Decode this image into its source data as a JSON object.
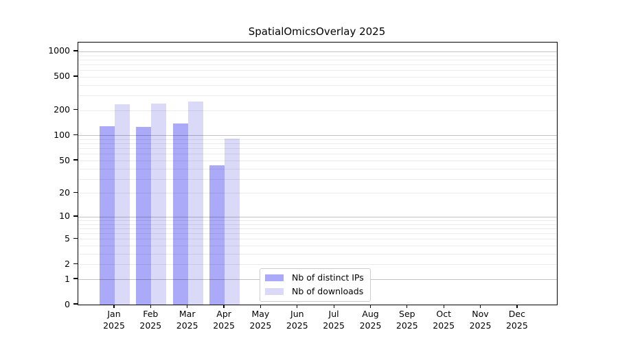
{
  "chart_data": {
    "type": "bar",
    "title": "SpatialOmicsOverlay 2025",
    "categories": [
      "Jan",
      "Feb",
      "Mar",
      "Apr",
      "May",
      "Jun",
      "Jul",
      "Aug",
      "Sep",
      "Oct",
      "Nov",
      "Dec"
    ],
    "category_year": "2025",
    "series": [
      {
        "name": "Nb of distinct IPs",
        "color": "#aaaaf8",
        "values": [
          130,
          127,
          140,
          44,
          null,
          null,
          null,
          null,
          null,
          null,
          null,
          null
        ]
      },
      {
        "name": "Nb of downloads",
        "color": "#dadaf8",
        "values": [
          237,
          240,
          255,
          92,
          null,
          null,
          null,
          null,
          null,
          null,
          null,
          null
        ]
      }
    ],
    "y_ticks": [
      0,
      1,
      2,
      5,
      10,
      20,
      50,
      100,
      200,
      500,
      1000
    ],
    "y_scale": "log1p",
    "ylim": [
      0,
      1280
    ],
    "xlabel": "",
    "ylabel": "",
    "grid": "horizontal-major-and-minor",
    "legend_position": "inside-bottom-left-of-center",
    "colors": {
      "bar_distinct_ips": "#aaaaf8",
      "bar_downloads": "#dadaf8",
      "grid_major": "#c2c2c2",
      "grid_minor": "#ececec",
      "axis": "#000000",
      "background": "#ffffff"
    }
  }
}
